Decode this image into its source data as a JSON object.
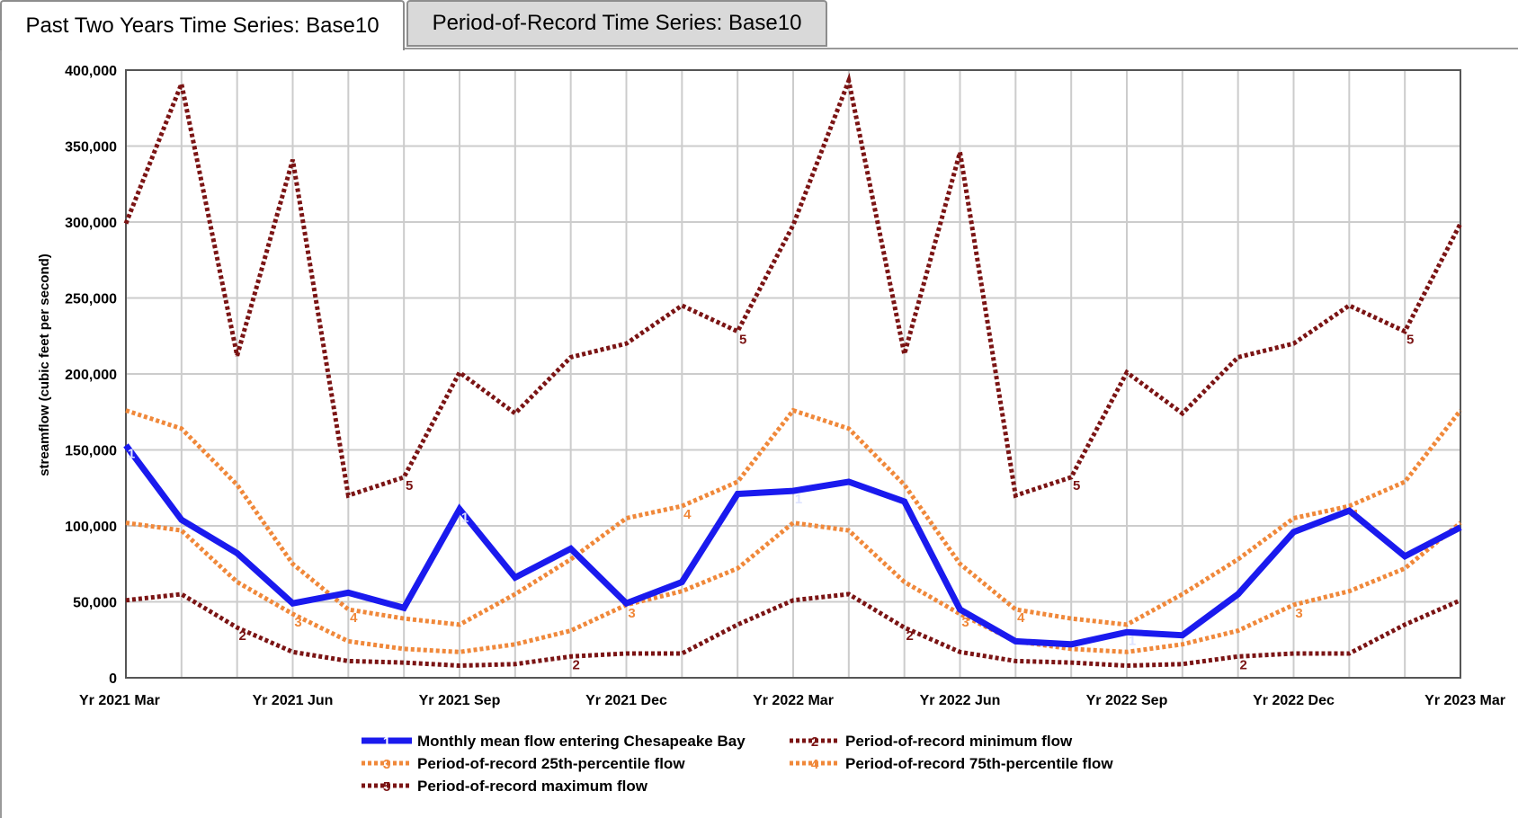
{
  "tabs": [
    {
      "label": "Past Two Years Time Series: Base10",
      "active": true
    },
    {
      "label": "Period-of-Record Time Series: Base10",
      "active": false
    }
  ],
  "chart_data": {
    "type": "line",
    "title": "",
    "xlabel": "",
    "ylabel": "streamflow (cubic feet per second)",
    "ylim": [
      0,
      400000
    ],
    "y_ticks": [
      0,
      50000,
      100000,
      150000,
      200000,
      250000,
      300000,
      350000,
      400000
    ],
    "y_tick_labels": [
      "0",
      "50,000",
      "100,000",
      "150,000",
      "200,000",
      "250,000",
      "300,000",
      "350,000",
      "400,000"
    ],
    "x": [
      "2021-03",
      "2021-04",
      "2021-05",
      "2021-06",
      "2021-07",
      "2021-08",
      "2021-09",
      "2021-10",
      "2021-11",
      "2021-12",
      "2022-01",
      "2022-02",
      "2022-03",
      "2022-04",
      "2022-05",
      "2022-06",
      "2022-07",
      "2022-08",
      "2022-09",
      "2022-10",
      "2022-11",
      "2022-12",
      "2023-01",
      "2023-02",
      "2023-03"
    ],
    "x_tick_labels": [
      "Yr 2021 Mar",
      "Yr 2021 Jun",
      "Yr 2021 Sep",
      "Yr 2021 Dec",
      "Yr 2022 Mar",
      "Yr 2022 Jun",
      "Yr 2022 Sep",
      "Yr 2022 Dec",
      "Yr 2023 Mar"
    ],
    "grid": true,
    "legend_position": "bottom",
    "series": [
      {
        "id": "1",
        "name": "Monthly mean flow entering Chesapeake Bay",
        "color": "#1a1aee",
        "style": "solid",
        "values": [
          153000,
          104000,
          82000,
          49000,
          56000,
          46000,
          111000,
          66000,
          85000,
          49000,
          63000,
          121000,
          123000,
          129000,
          116000,
          45000,
          24000,
          22000,
          30000,
          28000,
          55000,
          96000,
          110000,
          80000,
          99000
        ]
      },
      {
        "id": "2",
        "name": "Period-of-record minimum flow",
        "color": "#7b1414",
        "style": "dotted",
        "values": [
          51000,
          55000,
          33000,
          17000,
          11000,
          10000,
          8000,
          9000,
          14000,
          16000,
          16000,
          35000,
          51000,
          55000,
          33000,
          17000,
          11000,
          10000,
          8000,
          9000,
          14000,
          16000,
          16000,
          35000,
          51000
        ]
      },
      {
        "id": "3",
        "name": "Period-of-record 25th-percentile flow",
        "color": "#f0883a",
        "style": "dotted",
        "values": [
          102000,
          97000,
          63000,
          42000,
          24000,
          19000,
          17000,
          22000,
          31000,
          48000,
          57000,
          72000,
          102000,
          97000,
          63000,
          42000,
          24000,
          19000,
          17000,
          22000,
          31000,
          48000,
          57000,
          72000,
          102000
        ]
      },
      {
        "id": "4",
        "name": "Period-of-record 75th-percentile flow",
        "color": "#f0883a",
        "style": "dotted",
        "values": [
          176000,
          164000,
          127000,
          75000,
          45000,
          39000,
          35000,
          55000,
          78000,
          105000,
          113000,
          129000,
          176000,
          164000,
          127000,
          75000,
          45000,
          39000,
          35000,
          55000,
          78000,
          105000,
          113000,
          129000,
          176000
        ]
      },
      {
        "id": "5",
        "name": "Period-of-record maximum flow",
        "color": "#7b1414",
        "style": "dotted",
        "values": [
          299000,
          391000,
          212000,
          341000,
          120000,
          132000,
          201000,
          174000,
          211000,
          220000,
          245000,
          228000,
          298000,
          393000,
          213000,
          346000,
          120000,
          132000,
          201000,
          174000,
          211000,
          220000,
          245000,
          228000,
          299000
        ]
      }
    ]
  }
}
